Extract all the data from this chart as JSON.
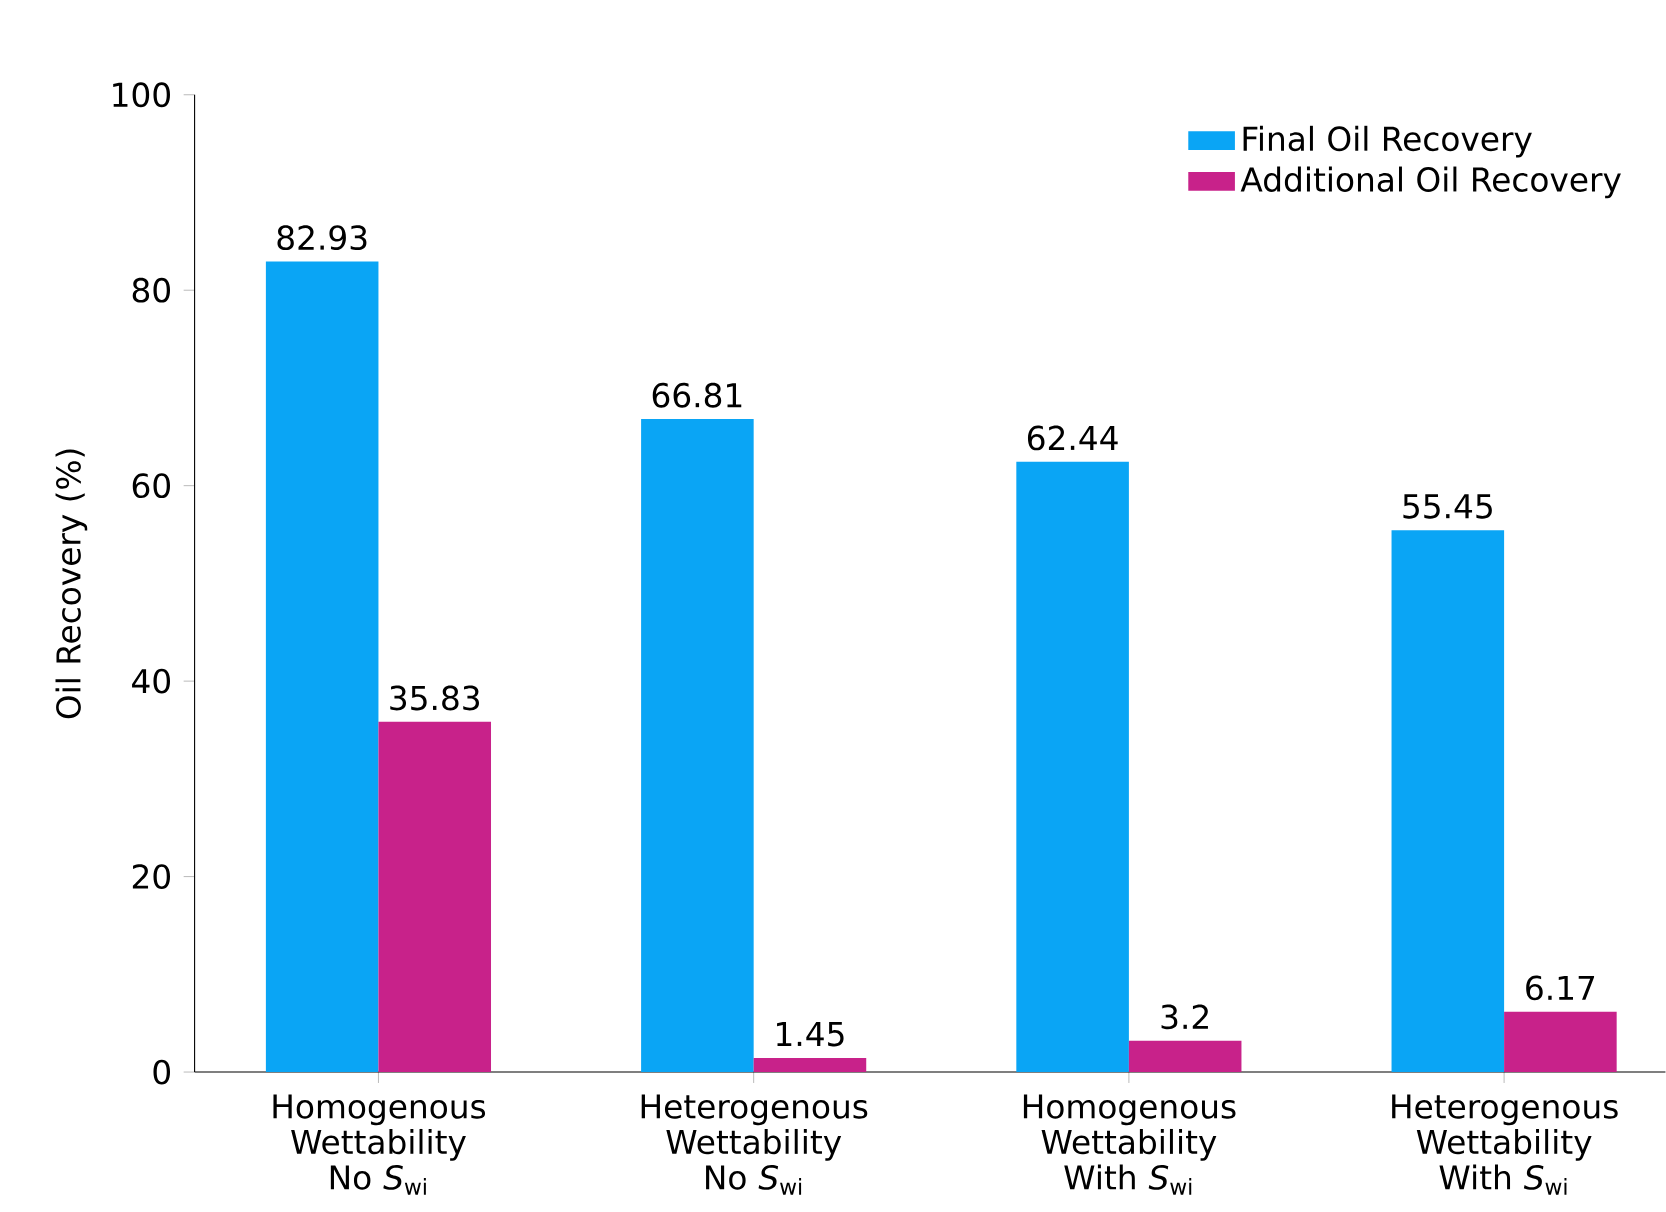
{
  "chart_data": {
    "type": "bar",
    "ylabel": "Oil Recovery (%)",
    "categories": [
      "Homogenous Wettability No *S*$_{wi}$",
      "Heterogenous Wettability No *S*$_{wi}$",
      "Homogenous Wettability With *S*$_{wi}$",
      "Heterogenous Wettability With *S*$_{wi}$"
    ],
    "series": [
      {
        "name": "Final Oil Recovery",
        "color": "#0aa5f5",
        "values": [
          82.93,
          66.81,
          62.44,
          55.45
        ]
      },
      {
        "name": "Additional Oil Recovery",
        "color": "#c8228a",
        "values": [
          35.83,
          1.45,
          3.2,
          6.17
        ]
      }
    ],
    "ylim": [
      0,
      100
    ],
    "yticks": [
      0,
      20,
      40,
      60,
      80,
      100
    ],
    "data_labels": true,
    "legend": "top right",
    "grid": false
  }
}
